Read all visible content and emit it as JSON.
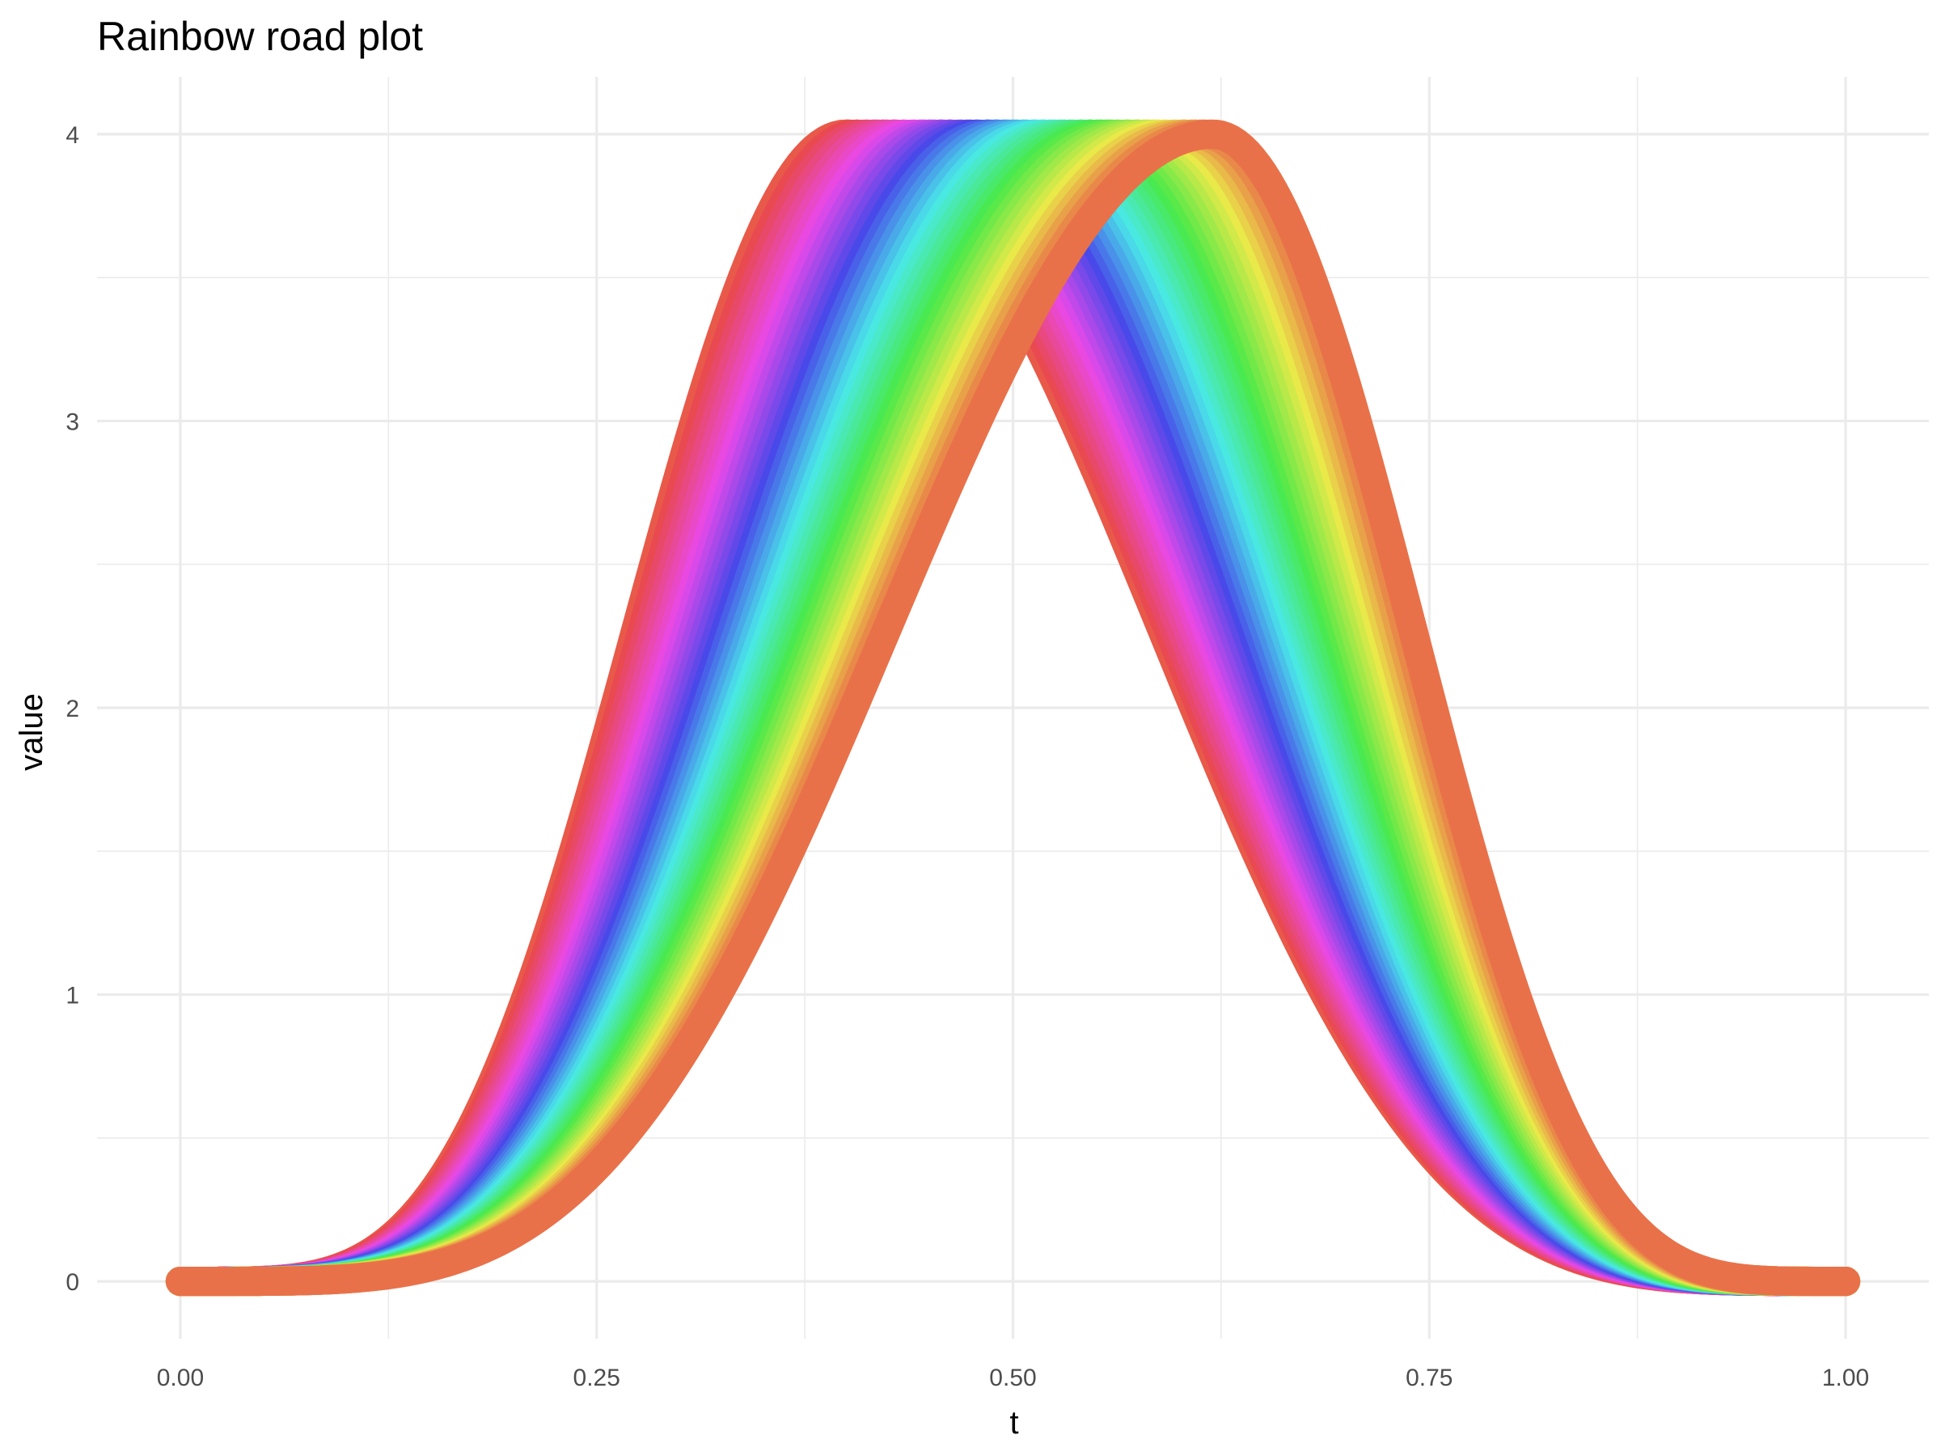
{
  "chart_data": {
    "type": "line",
    "title": "Rainbow road plot",
    "xlabel": "t",
    "ylabel": "value",
    "xlim": [
      -0.05,
      1.05
    ],
    "ylim": [
      -0.2,
      4.2
    ],
    "x_ticks": [
      0,
      0.25,
      0.5,
      0.75,
      1
    ],
    "x_tick_labels": [
      "0.00",
      "0.25",
      "0.50",
      "0.75",
      "1.00"
    ],
    "y_ticks": [
      0,
      1,
      2,
      3,
      4
    ],
    "y_tick_labels": [
      "0",
      "1",
      "2",
      "3",
      "4"
    ],
    "grid": true,
    "legend": "none",
    "curve_peak": 4,
    "rising_curve": {
      "x_start": 0,
      "peak_t": 0.62,
      "x_end": 1,
      "shape_power": 2.2
    },
    "falling_curve": {
      "x_start": 0,
      "peak_t": 0.4,
      "x_end": 1,
      "shape_power": 2.2
    },
    "band_count": 40,
    "band_offset_t": 0.0055,
    "band_palette_hue_degrees": [
      15,
      375
    ]
  }
}
